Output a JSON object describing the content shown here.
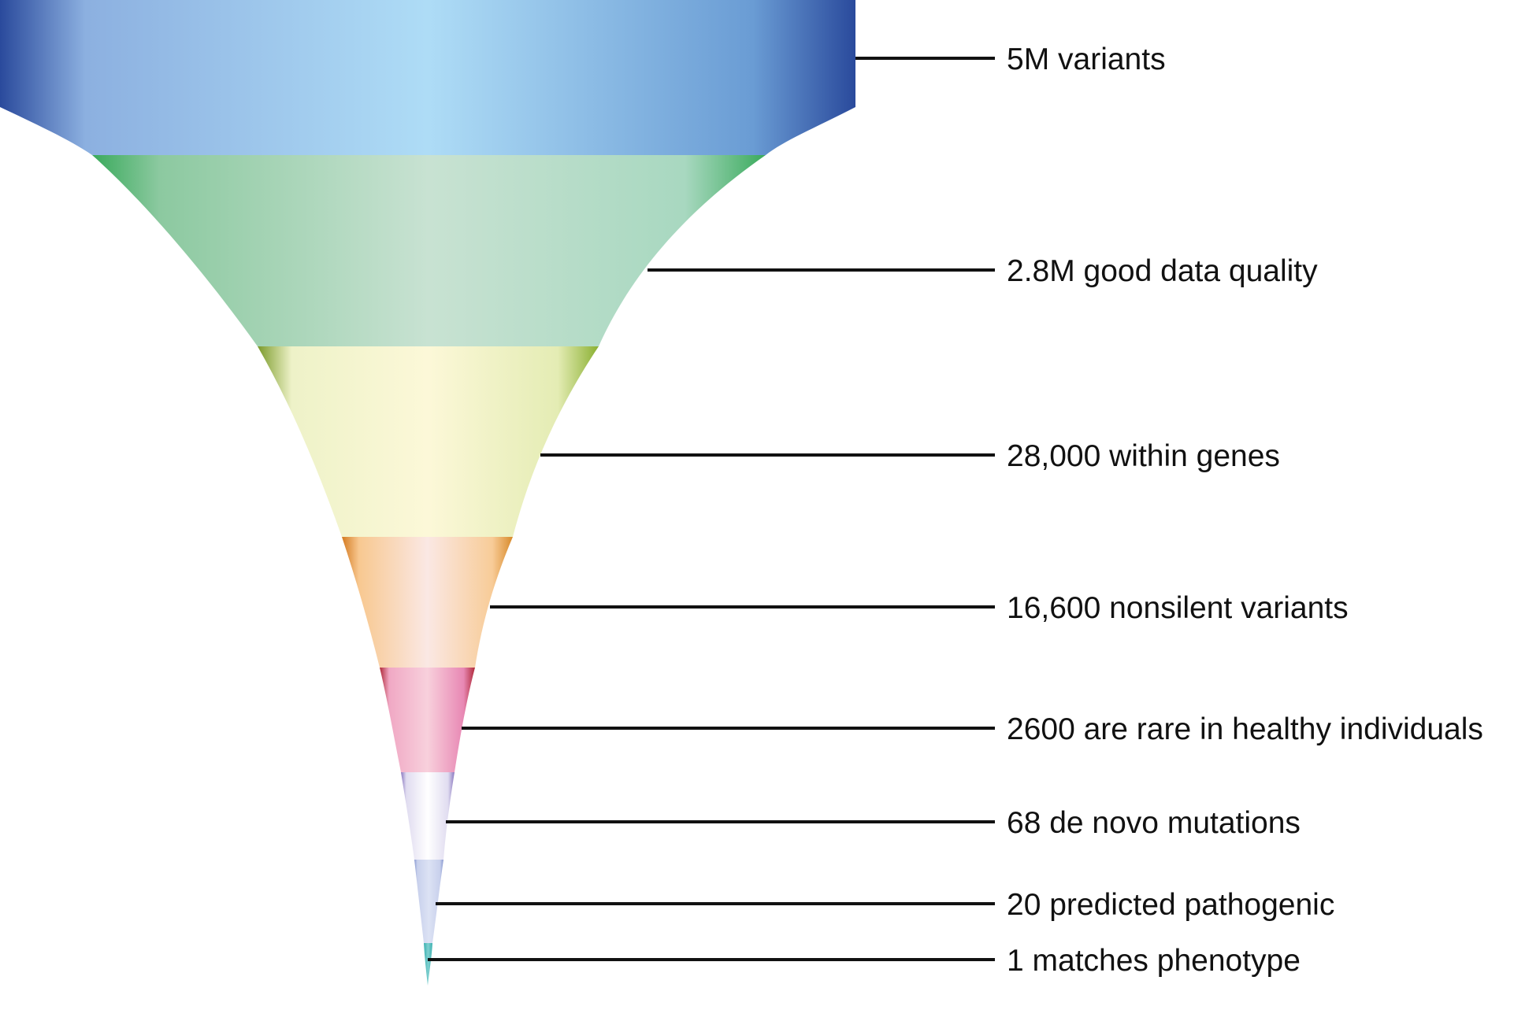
{
  "chart_data": {
    "type": "funnel",
    "stages": [
      {
        "label": "5M variants",
        "value": 5000000,
        "colors": [
          "#2a4a9c",
          "#8cb0e0",
          "#aedcf6",
          "#6a9cd4",
          "#2a4a9c"
        ]
      },
      {
        "label": "2.8M good data quality",
        "value": 2800000,
        "colors": [
          "#3aaa5c",
          "#8cc9a0",
          "#c8e2d2",
          "#a8d8c0",
          "#3aaa5c"
        ]
      },
      {
        "label": "28,000 within genes",
        "value": 28000,
        "colors": [
          "#7a9a2a",
          "#eef2c8",
          "#fcf8d8",
          "#e4ecb4",
          "#8ab032"
        ]
      },
      {
        "label": "16,600 nonsilent variants",
        "value": 16600,
        "colors": [
          "#d47a20",
          "#f8c890",
          "#fae8e4",
          "#f8cc98",
          "#d88a2a"
        ]
      },
      {
        "label": "2600 are rare in healthy individuals",
        "value": 2600,
        "colors": [
          "#b02a3a",
          "#f0a8c4",
          "#f8d0dc",
          "#e888b4",
          "#b02a3a"
        ]
      },
      {
        "label": "68 de novo mutations",
        "value": 68,
        "colors": [
          "#8a78c0",
          "#e0dcf0",
          "#ffffff",
          "#e0dcf0",
          "#8a78c0"
        ]
      },
      {
        "label": "20 predicted pathogenic",
        "value": 20,
        "colors": [
          "#8898d0",
          "#c8d0ec",
          "#dce2f4",
          "#c8d0ec",
          "#8898d0"
        ]
      },
      {
        "label": "1 matches phenotype",
        "value": 1,
        "colors": [
          "#3ab0b0",
          "#80d0d0",
          "#3ab0b0"
        ]
      }
    ]
  }
}
